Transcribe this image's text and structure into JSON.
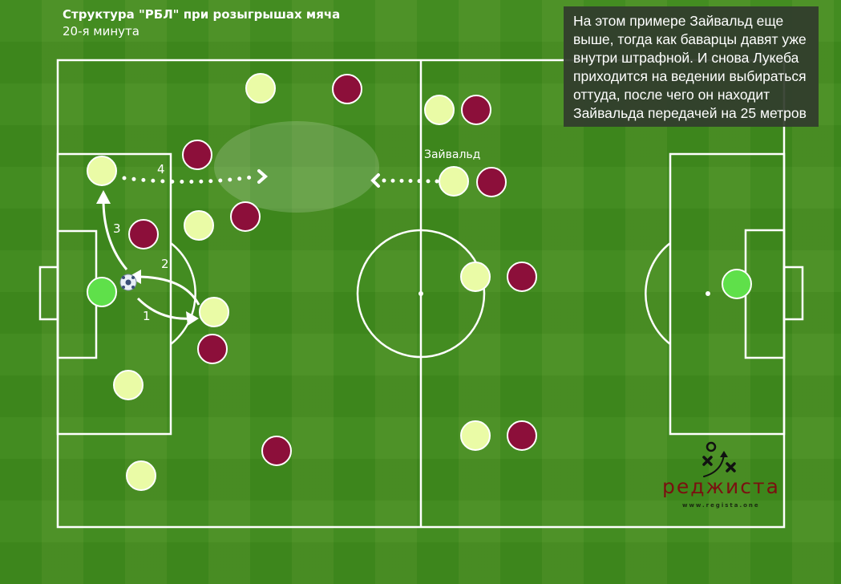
{
  "header": {
    "title": "Структура \"РБЛ\" при розыгрышах мяча",
    "subtitle": "20-я минута"
  },
  "note": {
    "lines": [
      "На этом примере Зайвальд еще",
      "выше, тогда как баварцы давят уже",
      "внутри штрафной. И снова Лукеба",
      "приходится на ведении выбираться",
      "оттуда, после чего он находит",
      "Зайвальда передачей на 25 метров"
    ]
  },
  "labels": {
    "pass1": "1",
    "pass2": "2",
    "pass3": "3",
    "pass4": "4",
    "player_name": "Зайвальд"
  },
  "logo": {
    "name": "реджиста",
    "url": "www.regista.one"
  },
  "colors": {
    "team_light": "#eafba6",
    "team_maroon": "#8c0f3a",
    "goalkeeper": "#5fe04a",
    "grass": "#3f8a1d"
  }
}
